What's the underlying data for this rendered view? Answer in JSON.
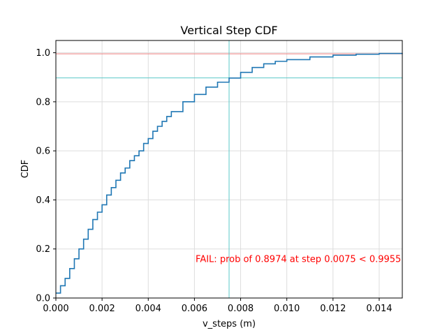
{
  "chart_data": {
    "type": "line",
    "title": "Vertical Step CDF",
    "xlabel": "v_steps (m)",
    "ylabel": "CDF",
    "xlim": [
      0,
      0.015
    ],
    "ylim": [
      0,
      1.05
    ],
    "xticks": [
      0,
      0.002,
      0.004,
      0.006,
      0.008,
      0.01,
      0.012,
      0.014
    ],
    "xtick_labels": [
      "0.000",
      "0.002",
      "0.004",
      "0.006",
      "0.008",
      "0.010",
      "0.012",
      "0.014"
    ],
    "yticks": [
      0,
      0.2,
      0.4,
      0.6,
      0.8,
      1.0
    ],
    "ytick_labels": [
      "0.0",
      "0.2",
      "0.4",
      "0.6",
      "0.8",
      "1.0"
    ],
    "grid": true,
    "series": [
      {
        "color": "#1f77b4",
        "x": [
          0,
          0.0002,
          0.0004,
          0.0006,
          0.0008,
          0.001,
          0.0012,
          0.0014,
          0.0016,
          0.0018,
          0.002,
          0.0022,
          0.0024,
          0.0026,
          0.0028,
          0.003,
          0.0032,
          0.0034,
          0.0036,
          0.0038,
          0.004,
          0.0042,
          0.0044,
          0.0046,
          0.0048,
          0.005,
          0.0055,
          0.006,
          0.0065,
          0.007,
          0.0075,
          0.008,
          0.0085,
          0.009,
          0.0095,
          0.01,
          0.011,
          0.012,
          0.013,
          0.014,
          0.015
        ],
        "y": [
          0.02,
          0.05,
          0.08,
          0.12,
          0.16,
          0.2,
          0.24,
          0.28,
          0.32,
          0.35,
          0.38,
          0.42,
          0.45,
          0.48,
          0.51,
          0.53,
          0.56,
          0.58,
          0.6,
          0.63,
          0.65,
          0.68,
          0.7,
          0.72,
          0.74,
          0.76,
          0.8,
          0.83,
          0.86,
          0.88,
          0.897,
          0.92,
          0.94,
          0.955,
          0.965,
          0.972,
          0.983,
          0.99,
          0.994,
          0.997,
          0.998
        ]
      }
    ],
    "reference_lines": [
      {
        "orientation": "horizontal",
        "value": 0.9955,
        "color": "#f08080"
      },
      {
        "orientation": "horizontal",
        "value": 0.8974,
        "color": "#5bc8c8"
      },
      {
        "orientation": "vertical",
        "value": 0.0075,
        "color": "#5bc8c8"
      }
    ],
    "annotation": {
      "text": "FAIL: prob of 0.8974 at step 0.0075 < 0.9955",
      "x": 0.0105,
      "y": 0.16,
      "color": "#ff0000"
    }
  }
}
